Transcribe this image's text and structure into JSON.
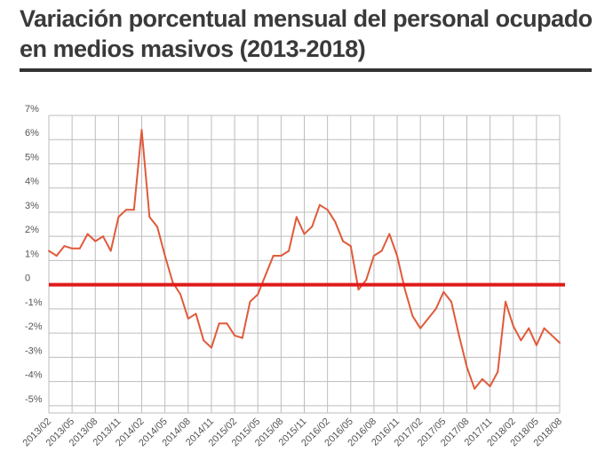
{
  "title": "Variación porcentual mensual del personal ocupado en medios masivos (2013-2018)",
  "colors": {
    "line": "#e05a3a",
    "zero_line": "#e01b1b",
    "grid": "#bdbdbd",
    "title_rule": "#333333"
  },
  "chart_data": {
    "type": "line",
    "title": "Variación porcentual mensual del personal ocupado en medios masivos (2013-2018)",
    "xlabel": "",
    "ylabel": "",
    "ylim": [
      -5.3,
      7
    ],
    "y_ticks": [
      {
        "value": 7,
        "label": "7%"
      },
      {
        "value": 6,
        "label": "6%"
      },
      {
        "value": 5,
        "label": "5%"
      },
      {
        "value": 4,
        "label": "4%"
      },
      {
        "value": 3,
        "label": "3%"
      },
      {
        "value": 2,
        "label": "2%"
      },
      {
        "value": 1,
        "label": "1%"
      },
      {
        "value": 0,
        "label": "0"
      },
      {
        "value": -1,
        "label": "-1%"
      },
      {
        "value": -2,
        "label": "-2%"
      },
      {
        "value": -3,
        "label": "-3%"
      },
      {
        "value": -4,
        "label": "-4%"
      },
      {
        "value": -5,
        "label": "-5%"
      }
    ],
    "x_tick_labels": [
      "2013/02",
      "2013/05",
      "2013/08",
      "2013/11",
      "2014/02",
      "2014/05",
      "2014/08",
      "2014/11",
      "2015/02",
      "2015/05",
      "2015/08",
      "2015/11",
      "2016/02",
      "2016/05",
      "2016/08",
      "2016/11",
      "2017/02",
      "2017/05",
      "2017/08",
      "2017/11",
      "2018/02",
      "2018/05",
      "2018/08"
    ],
    "grid": true,
    "legend": "none",
    "series": [
      {
        "x": [
          "2013/02",
          "2013/03",
          "2013/04",
          "2013/05",
          "2013/06",
          "2013/07",
          "2013/08",
          "2013/09",
          "2013/10",
          "2013/11",
          "2013/12",
          "2014/01",
          "2014/02",
          "2014/03",
          "2014/04",
          "2014/05",
          "2014/06",
          "2014/07",
          "2014/08",
          "2014/09",
          "2014/10",
          "2014/11",
          "2014/12",
          "2015/01",
          "2015/02",
          "2015/03",
          "2015/04",
          "2015/05",
          "2015/06",
          "2015/07",
          "2015/08",
          "2015/09",
          "2015/10",
          "2015/11",
          "2015/12",
          "2016/01",
          "2016/02",
          "2016/03",
          "2016/04",
          "2016/05",
          "2016/06",
          "2016/07",
          "2016/08",
          "2016/09",
          "2016/10",
          "2016/11",
          "2016/12",
          "2017/01",
          "2017/02",
          "2017/03",
          "2017/04",
          "2017/05",
          "2017/06",
          "2017/07",
          "2017/08",
          "2017/09",
          "2017/10",
          "2017/11",
          "2017/12",
          "2018/01",
          "2018/02",
          "2018/03",
          "2018/04",
          "2018/05",
          "2018/06",
          "2018/07",
          "2018/08"
        ],
        "values": [
          1.4,
          1.2,
          1.6,
          1.5,
          1.5,
          2.1,
          1.8,
          2.0,
          1.4,
          2.8,
          3.1,
          3.1,
          6.4,
          2.8,
          2.4,
          1.2,
          0.1,
          -0.4,
          -1.4,
          -1.2,
          -2.3,
          -2.6,
          -1.6,
          -1.6,
          -2.1,
          -2.2,
          -0.7,
          -0.4,
          0.4,
          1.2,
          1.2,
          1.4,
          2.8,
          2.1,
          2.4,
          3.3,
          3.1,
          2.6,
          1.8,
          1.6,
          -0.2,
          0.2,
          1.2,
          1.4,
          2.1,
          1.2,
          -0.2,
          -1.3,
          -1.8,
          -1.4,
          -1.0,
          -0.3,
          -0.7,
          -2.1,
          -3.4,
          -4.3,
          -3.9,
          -4.2,
          -3.6,
          -0.7,
          -1.7,
          -2.3,
          -1.8,
          -2.5,
          -1.8,
          -2.1,
          -2.4
        ]
      }
    ]
  }
}
